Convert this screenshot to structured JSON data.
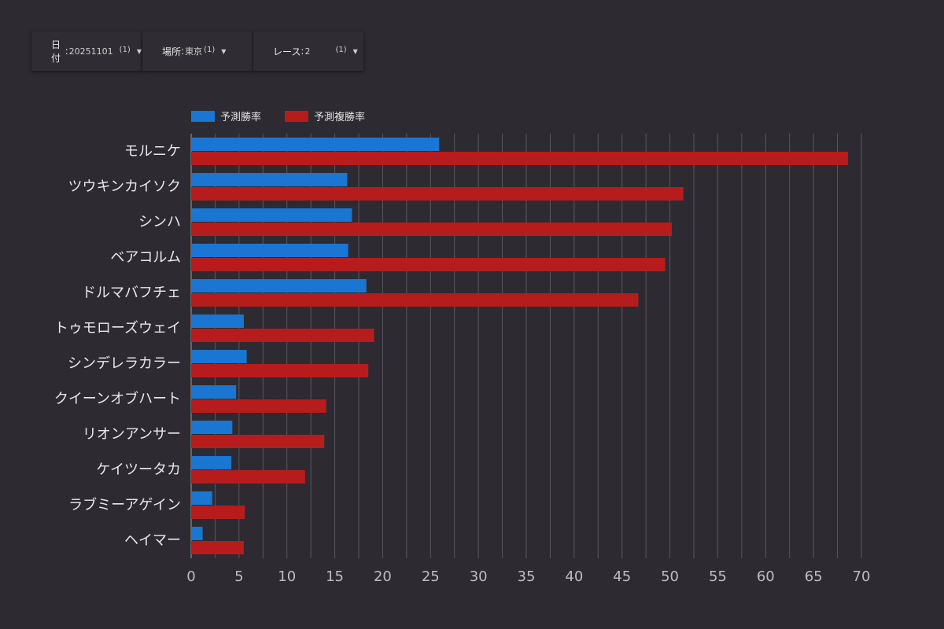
{
  "filters": [
    {
      "label": "日付",
      "value": "20251101",
      "count": "(1)"
    },
    {
      "label": "場所",
      "value": "東京",
      "count": "(1)"
    },
    {
      "label": "レース",
      "value": "2",
      "count": "(1)"
    }
  ],
  "colors": {
    "win": "#1976d2",
    "place": "#b71c1c",
    "background": "#2d2b31",
    "grid": "#5a585e"
  },
  "chart_data": {
    "type": "bar",
    "orientation": "horizontal",
    "legend_position": "top-left",
    "categories": [
      "モルニケ",
      "ツウキンカイソク",
      "シンハ",
      "ベアコルム",
      "ドルマバフチェ",
      "トゥモローズウェイ",
      "シンデレラカラー",
      "クイーンオブハート",
      "リオンアンサー",
      "ケイツータカ",
      "ラブミーアゲイン",
      "ヘイマー"
    ],
    "series": [
      {
        "name": "予測勝率",
        "values": [
          25.9,
          16.3,
          16.8,
          16.4,
          18.3,
          5.5,
          5.8,
          4.7,
          4.3,
          4.2,
          2.2,
          1.2
        ]
      },
      {
        "name": "予測複勝率",
        "values": [
          68.6,
          51.4,
          50.2,
          49.5,
          46.7,
          19.1,
          18.5,
          14.1,
          13.9,
          11.9,
          5.6,
          5.5
        ]
      }
    ],
    "xlim": [
      0,
      70
    ],
    "xticks": [
      0,
      5,
      10,
      15,
      20,
      25,
      30,
      35,
      40,
      45,
      50,
      55,
      60,
      65,
      70
    ],
    "minor_step": 2.5,
    "grid": true
  }
}
